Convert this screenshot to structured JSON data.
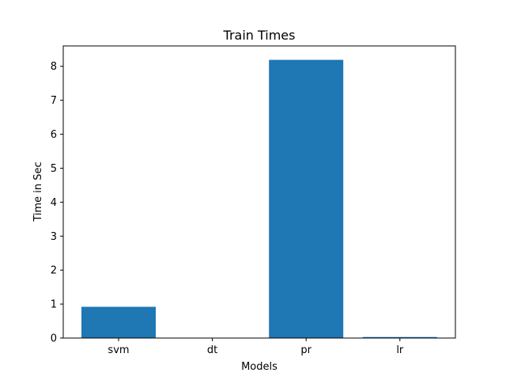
{
  "chart_data": {
    "type": "bar",
    "title": "Train Times",
    "xlabel": "Models",
    "ylabel": "Time in Sec",
    "categories": [
      "svm",
      "dt",
      "pr",
      "lr"
    ],
    "values": [
      0.92,
      0.005,
      8.19,
      0.03
    ],
    "ylim": [
      0,
      8.6
    ],
    "yticks": [
      0,
      1,
      2,
      3,
      4,
      5,
      6,
      7,
      8
    ],
    "bar_color": "#1f77b4",
    "grid": false
  }
}
